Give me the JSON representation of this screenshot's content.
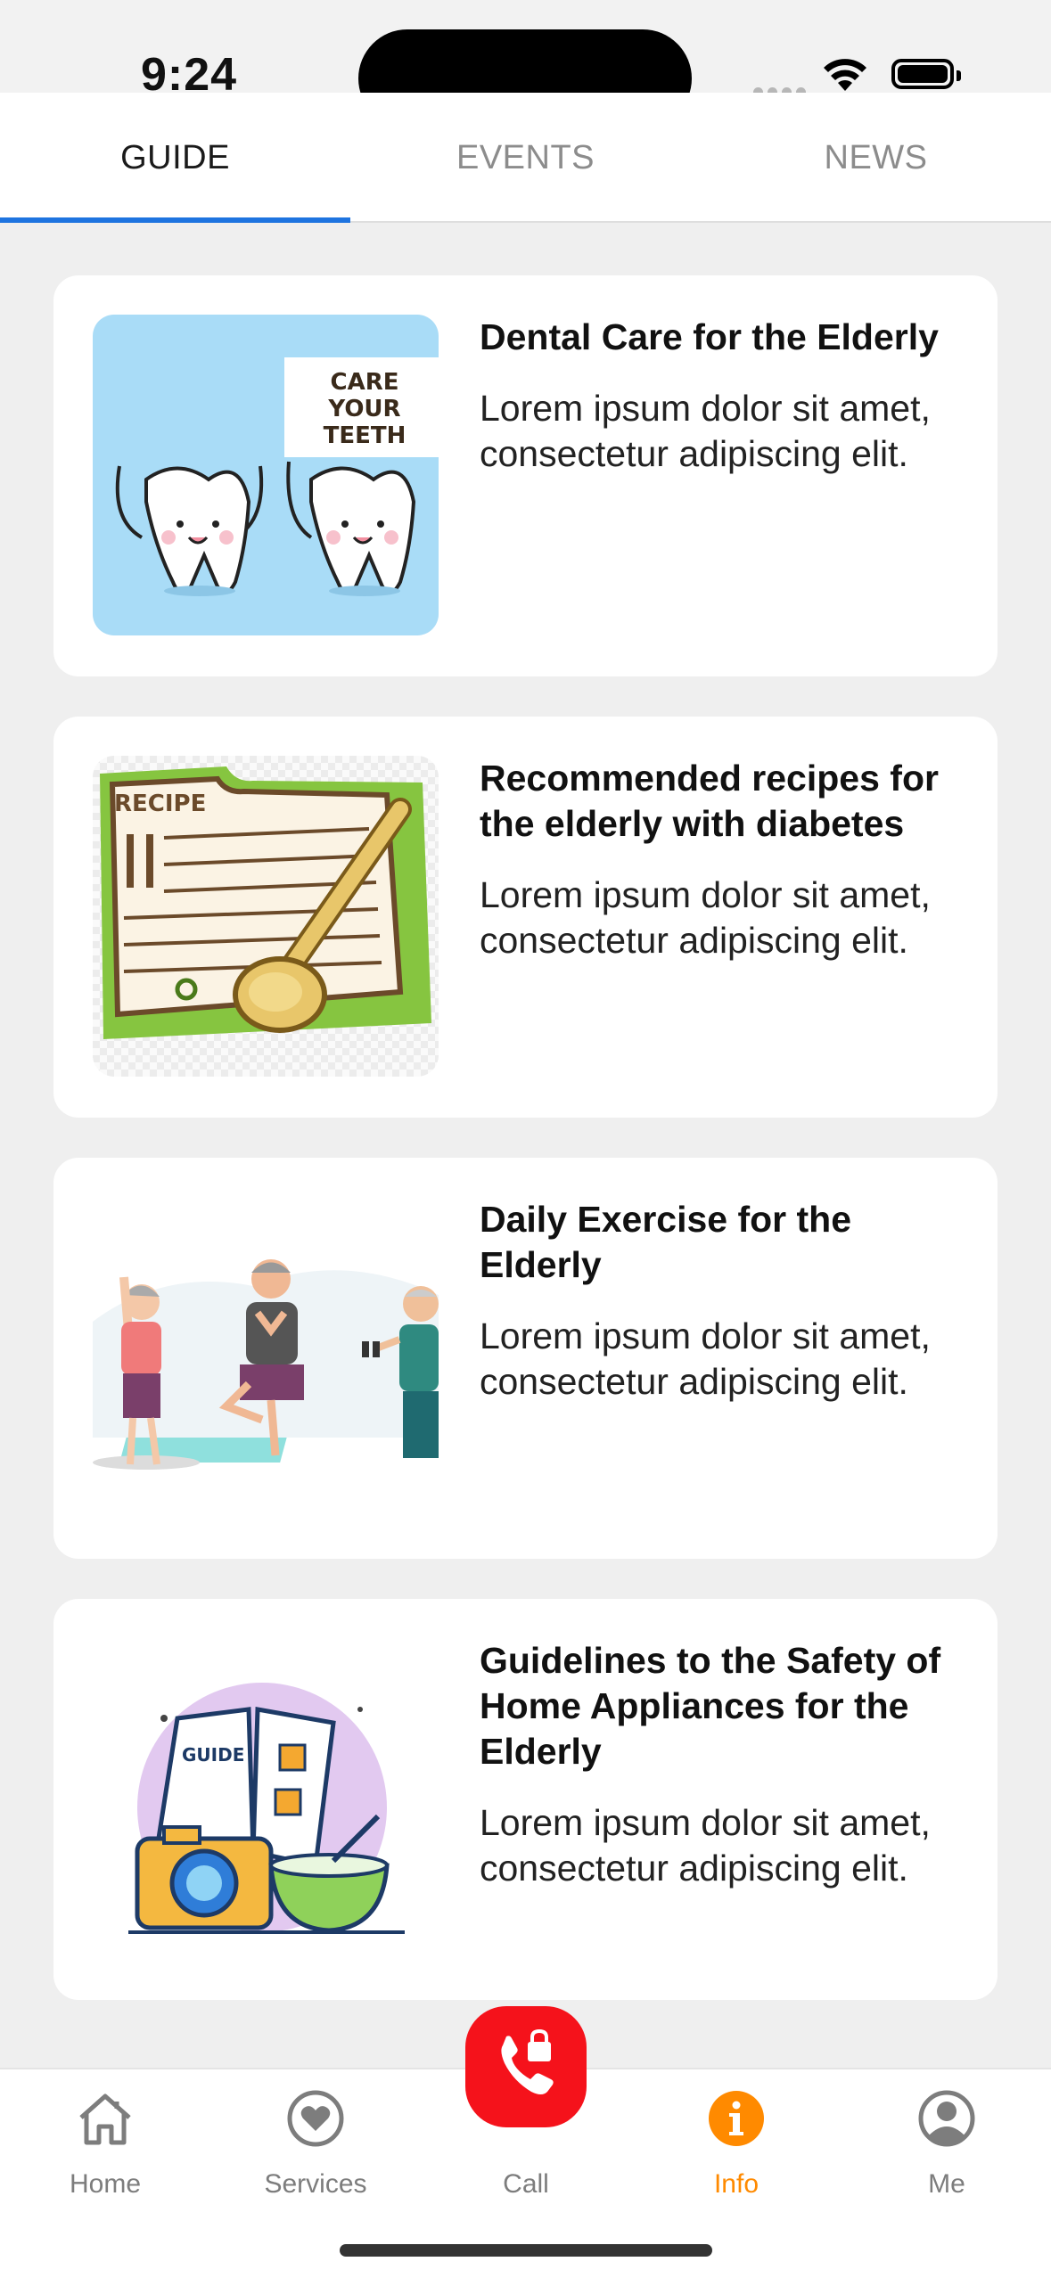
{
  "status_bar": {
    "time": "9:24"
  },
  "tabs": [
    {
      "label": "GUIDE",
      "active": true
    },
    {
      "label": "EVENTS",
      "active": false
    },
    {
      "label": "NEWS",
      "active": false
    }
  ],
  "thumb_text": {
    "care_sign": [
      "CARE",
      "YOUR",
      "TEETH"
    ],
    "recipe": "RECIPE",
    "guide": "GUIDE"
  },
  "articles": [
    {
      "title": "Dental Care for the Elderly",
      "description": "Lorem ipsum dolor sit amet, consectetur adipiscing elit."
    },
    {
      "title": "Recommended recipes for the elderly with diabetes",
      "description": "Lorem ipsum dolor sit amet, consectetur adipiscing elit."
    },
    {
      "title": "Daily Exercise for the Elderly",
      "description": "Lorem ipsum dolor sit amet, consectetur adipiscing elit."
    },
    {
      "title": "Guidelines to the Safety of Home Appliances for the Elderly",
      "description": "Lorem ipsum dolor sit amet, consectetur adipiscing elit."
    }
  ],
  "bottom_nav": [
    {
      "label": "Home",
      "icon": "home-icon",
      "active": false
    },
    {
      "label": "Services",
      "icon": "heart-icon",
      "active": false
    },
    {
      "label": "Call",
      "icon": "phone-lock-icon",
      "active": false
    },
    {
      "label": "Info",
      "icon": "info-icon",
      "active": true
    },
    {
      "label": "Me",
      "icon": "user-icon",
      "active": false
    }
  ],
  "colors": {
    "tab_indicator": "#1e74e0",
    "active_nav": "#ff8a00",
    "call_button": "#f5121b"
  }
}
